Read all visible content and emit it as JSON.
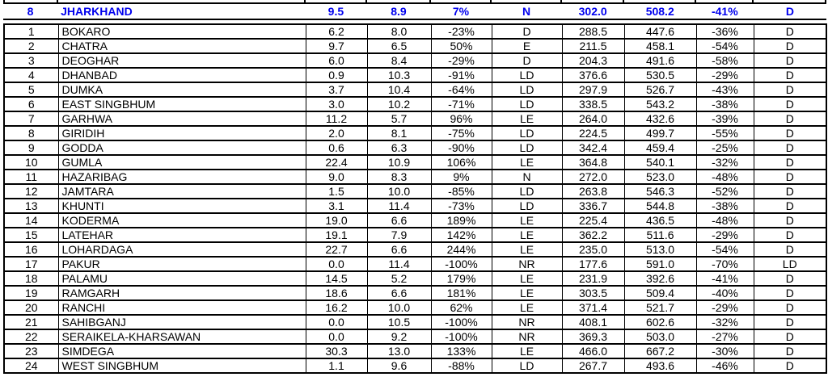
{
  "colors": {
    "summary_text": "#0000ee",
    "text": "#000000",
    "border": "#000000",
    "background": "#ffffff"
  },
  "table": {
    "summary": {
      "rank": "8",
      "name": "JHARKHAND",
      "values": [
        "9.5",
        "8.9",
        "7%",
        "N",
        "302.0",
        "508.2",
        "-41%",
        "D"
      ]
    },
    "rows": [
      {
        "rank": "1",
        "name": "BOKARO",
        "values": [
          "6.2",
          "8.0",
          "-23%",
          "D",
          "288.5",
          "447.6",
          "-36%",
          "D"
        ]
      },
      {
        "rank": "2",
        "name": "CHATRA",
        "values": [
          "9.7",
          "6.5",
          "50%",
          "E",
          "211.5",
          "458.1",
          "-54%",
          "D"
        ]
      },
      {
        "rank": "3",
        "name": "DEOGHAR",
        "values": [
          "6.0",
          "8.4",
          "-29%",
          "D",
          "204.3",
          "491.6",
          "-58%",
          "D"
        ]
      },
      {
        "rank": "4",
        "name": "DHANBAD",
        "values": [
          "0.9",
          "10.3",
          "-91%",
          "LD",
          "376.6",
          "530.5",
          "-29%",
          "D"
        ]
      },
      {
        "rank": "5",
        "name": "DUMKA",
        "values": [
          "3.7",
          "10.4",
          "-64%",
          "LD",
          "297.9",
          "526.7",
          "-43%",
          "D"
        ]
      },
      {
        "rank": "6",
        "name": "EAST SINGBHUM",
        "values": [
          "3.0",
          "10.2",
          "-71%",
          "LD",
          "338.5",
          "543.2",
          "-38%",
          "D"
        ]
      },
      {
        "rank": "7",
        "name": "GARHWA",
        "values": [
          "11.2",
          "5.7",
          "96%",
          "LE",
          "264.0",
          "432.6",
          "-39%",
          "D"
        ]
      },
      {
        "rank": "8",
        "name": "GIRIDIH",
        "values": [
          "2.0",
          "8.1",
          "-75%",
          "LD",
          "224.5",
          "499.7",
          "-55%",
          "D"
        ]
      },
      {
        "rank": "9",
        "name": "GODDA",
        "values": [
          "0.6",
          "6.3",
          "-90%",
          "LD",
          "342.4",
          "459.4",
          "-25%",
          "D"
        ]
      },
      {
        "rank": "10",
        "name": "GUMLA",
        "values": [
          "22.4",
          "10.9",
          "106%",
          "LE",
          "364.8",
          "540.1",
          "-32%",
          "D"
        ]
      },
      {
        "rank": "11",
        "name": "HAZARIBAG",
        "values": [
          "9.0",
          "8.3",
          "9%",
          "N",
          "272.0",
          "523.0",
          "-48%",
          "D"
        ]
      },
      {
        "rank": "12",
        "name": "JAMTARA",
        "values": [
          "1.5",
          "10.0",
          "-85%",
          "LD",
          "263.8",
          "546.3",
          "-52%",
          "D"
        ]
      },
      {
        "rank": "13",
        "name": "KHUNTI",
        "values": [
          "3.1",
          "11.4",
          "-73%",
          "LD",
          "336.7",
          "544.8",
          "-38%",
          "D"
        ]
      },
      {
        "rank": "14",
        "name": "KODERMA",
        "values": [
          "19.0",
          "6.6",
          "189%",
          "LE",
          "225.4",
          "436.5",
          "-48%",
          "D"
        ]
      },
      {
        "rank": "15",
        "name": "LATEHAR",
        "values": [
          "19.1",
          "7.9",
          "142%",
          "LE",
          "362.2",
          "511.6",
          "-29%",
          "D"
        ]
      },
      {
        "rank": "16",
        "name": "LOHARDAGA",
        "values": [
          "22.7",
          "6.6",
          "244%",
          "LE",
          "235.0",
          "513.0",
          "-54%",
          "D"
        ]
      },
      {
        "rank": "17",
        "name": "PAKUR",
        "values": [
          "0.0",
          "11.4",
          "-100%",
          "NR",
          "177.6",
          "591.0",
          "-70%",
          "LD"
        ]
      },
      {
        "rank": "18",
        "name": "PALAMU",
        "values": [
          "14.5",
          "5.2",
          "179%",
          "LE",
          "231.9",
          "392.6",
          "-41%",
          "D"
        ]
      },
      {
        "rank": "19",
        "name": "RAMGARH",
        "values": [
          "18.6",
          "6.6",
          "181%",
          "LE",
          "303.5",
          "509.4",
          "-40%",
          "D"
        ]
      },
      {
        "rank": "20",
        "name": "RANCHI",
        "values": [
          "16.2",
          "10.0",
          "62%",
          "LE",
          "371.4",
          "521.7",
          "-29%",
          "D"
        ]
      },
      {
        "rank": "21",
        "name": "SAHIBGANJ",
        "values": [
          "0.0",
          "10.5",
          "-100%",
          "NR",
          "408.1",
          "602.6",
          "-32%",
          "D"
        ]
      },
      {
        "rank": "22",
        "name": "SERAIKELA-KHARSAWAN",
        "values": [
          "0.0",
          "9.2",
          "-100%",
          "NR",
          "369.3",
          "503.0",
          "-27%",
          "D"
        ]
      },
      {
        "rank": "23",
        "name": "SIMDEGA",
        "values": [
          "30.3",
          "13.0",
          "133%",
          "LE",
          "466.0",
          "667.2",
          "-30%",
          "D"
        ]
      },
      {
        "rank": "24",
        "name": "WEST SINGBHUM",
        "values": [
          "1.1",
          "9.6",
          "-88%",
          "LD",
          "267.7",
          "493.6",
          "-46%",
          "D"
        ]
      }
    ]
  }
}
